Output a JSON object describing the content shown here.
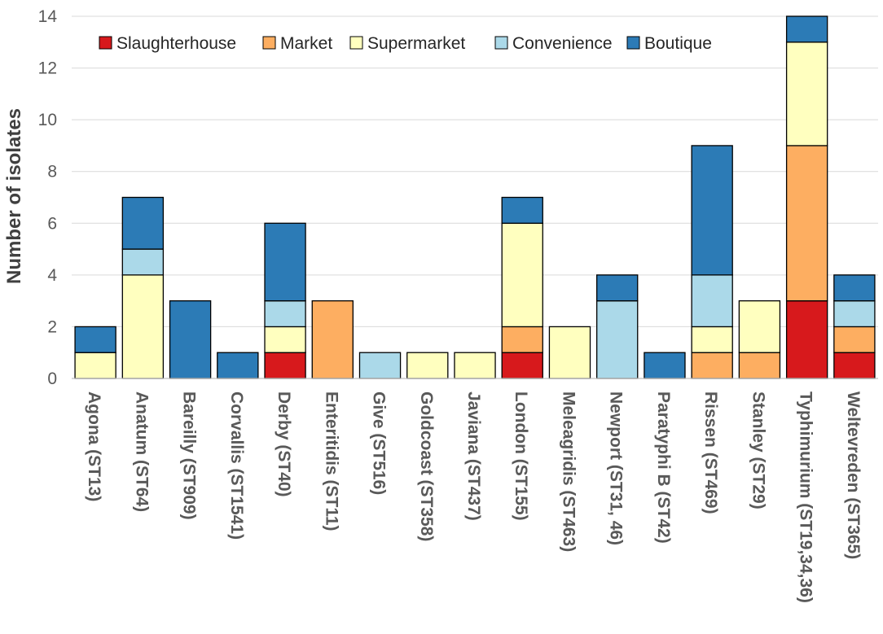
{
  "chart_data": {
    "type": "bar",
    "stacked": true,
    "title": "",
    "xlabel": "",
    "ylabel": "Number of isolates",
    "ylim": [
      0,
      14
    ],
    "yticks": [
      0,
      2,
      4,
      6,
      8,
      10,
      12,
      14
    ],
    "grid": true,
    "legend_position": "top",
    "categories": [
      "Agona (ST13)",
      "Anatum (ST64)",
      "Bareilly (ST909)",
      "Corvallis (ST1541)",
      "Derby (ST40)",
      "Enteritidis (ST11)",
      "Give (ST516)",
      "Goldcoast (ST358)",
      "Javiana (ST437)",
      "London (ST155)",
      "Meleagridis (ST463)",
      "Newport (ST31, 46)",
      "Paratyphi B (ST42)",
      "Rissen (ST469)",
      "Stanley (ST29)",
      "Typhimurium (ST19,34,36)",
      "Weltevreden (ST365)"
    ],
    "series": [
      {
        "name": "Slaughterhouse",
        "color": "#d7191c",
        "values": [
          0,
          0,
          0,
          0,
          1,
          0,
          0,
          0,
          0,
          1,
          0,
          0,
          0,
          0,
          0,
          3,
          1
        ]
      },
      {
        "name": "Market",
        "color": "#fdae61",
        "values": [
          0,
          0,
          0,
          0,
          0,
          3,
          0,
          0,
          0,
          1,
          0,
          0,
          0,
          1,
          1,
          6,
          1
        ]
      },
      {
        "name": "Supermarket",
        "color": "#ffffbf",
        "values": [
          1,
          4,
          0,
          0,
          1,
          0,
          0,
          1,
          1,
          4,
          2,
          0,
          0,
          1,
          2,
          4,
          0
        ]
      },
      {
        "name": "Convenience",
        "color": "#abd9e9",
        "values": [
          0,
          1,
          0,
          0,
          1,
          0,
          1,
          0,
          0,
          0,
          0,
          3,
          0,
          2,
          0,
          0,
          1
        ]
      },
      {
        "name": "Boutique",
        "color": "#2c7bb6",
        "values": [
          1,
          2,
          3,
          1,
          3,
          0,
          0,
          0,
          0,
          1,
          0,
          1,
          1,
          5,
          0,
          1,
          1
        ]
      }
    ]
  }
}
